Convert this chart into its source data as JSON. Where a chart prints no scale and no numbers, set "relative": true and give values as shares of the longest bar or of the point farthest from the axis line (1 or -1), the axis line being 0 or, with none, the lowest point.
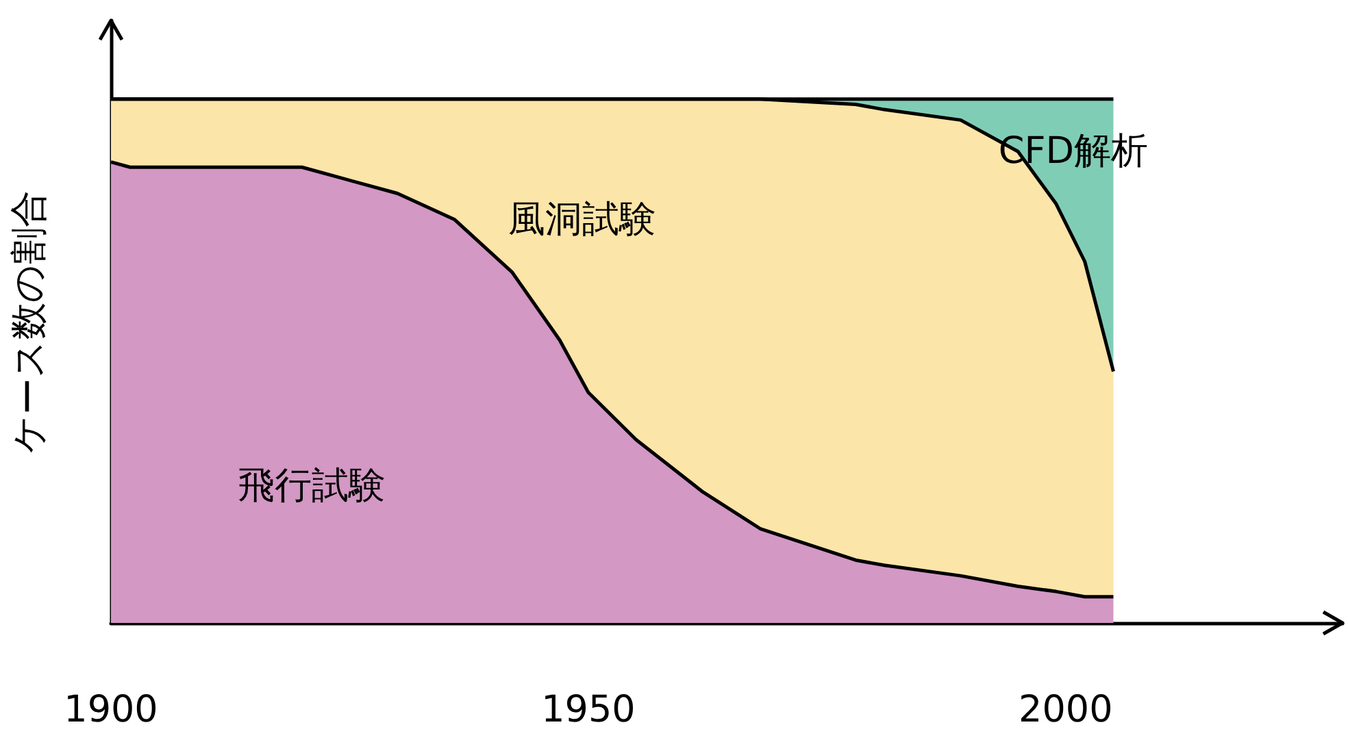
{
  "chart_data": {
    "type": "area",
    "stacked": true,
    "relative": true,
    "ylabel": "ケース数の割合",
    "x": [
      1900,
      1902,
      1920,
      1930,
      1936,
      1942,
      1947,
      1950,
      1955,
      1962,
      1968,
      1978,
      1981,
      1989,
      1995,
      1999,
      2002,
      2005
    ],
    "series": [
      {
        "name": "飛行試験",
        "color": "#d398c4",
        "values": [
          0.88,
          0.87,
          0.87,
          0.82,
          0.77,
          0.67,
          0.54,
          0.44,
          0.35,
          0.25,
          0.18,
          0.12,
          0.11,
          0.09,
          0.07,
          0.06,
          0.05,
          0.05
        ]
      },
      {
        "name": "風洞試験",
        "color": "#fce5a8",
        "values": [
          0.12,
          0.13,
          0.13,
          0.18,
          0.23,
          0.33,
          0.46,
          0.56,
          0.65,
          0.75,
          0.82,
          0.87,
          0.87,
          0.87,
          0.83,
          0.74,
          0.64,
          0.43
        ]
      },
      {
        "name": "CFD解析",
        "color": "#80cdb5",
        "values": [
          0,
          0,
          0,
          0,
          0,
          0,
          0,
          0,
          0,
          0,
          0,
          0.01,
          0.02,
          0.04,
          0.1,
          0.2,
          0.31,
          0.52
        ]
      }
    ],
    "xlim": [
      1900,
      2029
    ],
    "xticks": [
      1900,
      1950,
      2000
    ],
    "grid": false,
    "legend": false,
    "marker": "none",
    "line_style": "solid"
  }
}
